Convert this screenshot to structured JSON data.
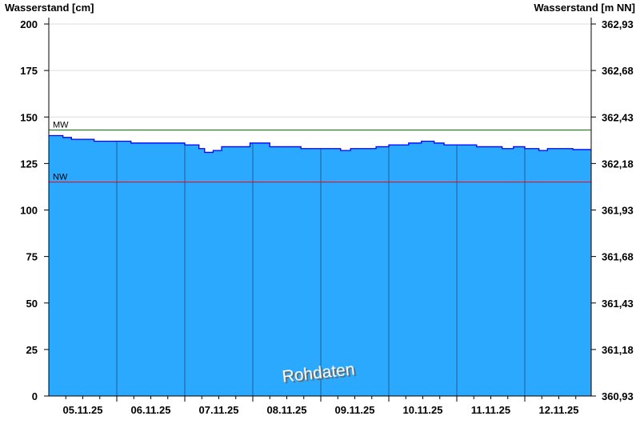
{
  "chart_data": {
    "type": "area",
    "ylabel_left": "Wasserstand [cm]",
    "ylabel_right": "Wasserstand [m NN]",
    "ylim": [
      0,
      200
    ],
    "yticks_left": [
      "0",
      "25",
      "50",
      "75",
      "100",
      "125",
      "150",
      "175",
      "200"
    ],
    "yticks_right": [
      "360,93",
      "361,18",
      "361,43",
      "361,68",
      "361,93",
      "362,18",
      "362,43",
      "362,68",
      "362,93"
    ],
    "xlim": [
      "05.11.25 00:00",
      "12.11.25 23:30"
    ],
    "xtick_labels": [
      "05.11.25",
      "06.11.25",
      "07.11.25",
      "08.11.25",
      "09.11.25",
      "10.11.25",
      "11.11.25",
      "12.11.25"
    ],
    "grid": true,
    "series": [
      {
        "color": "#0000ff",
        "fill": "#2aa9ff",
        "points": [
          [
            "05.11.25 00:00",
            140
          ],
          [
            "05.11.25 05:00",
            139
          ],
          [
            "05.11.25 08:00",
            138
          ],
          [
            "05.11.25 16:00",
            137
          ],
          [
            "06.11.25 05:00",
            136
          ],
          [
            "07.11.25 00:00",
            135
          ],
          [
            "07.11.25 05:00",
            133
          ],
          [
            "07.11.25 07:00",
            131
          ],
          [
            "07.11.25 10:00",
            132
          ],
          [
            "07.11.25 13:00",
            134
          ],
          [
            "07.11.25 23:00",
            136
          ],
          [
            "08.11.25 06:00",
            134
          ],
          [
            "08.11.25 17:00",
            133
          ],
          [
            "09.11.25 07:00",
            132
          ],
          [
            "09.11.25 10:30",
            133
          ],
          [
            "09.11.25 19:30",
            134
          ],
          [
            "10.11.25 00:00",
            135
          ],
          [
            "10.11.25 07:00",
            136
          ],
          [
            "10.11.25 11:30",
            137
          ],
          [
            "10.11.25 16:00",
            136
          ],
          [
            "10.11.25 19:30",
            135
          ],
          [
            "11.11.25 07:00",
            134
          ],
          [
            "11.11.25 16:00",
            133
          ],
          [
            "11.11.25 20:00",
            134
          ],
          [
            "12.11.25 00:00",
            133
          ],
          [
            "12.11.25 05:00",
            132
          ],
          [
            "12.11.25 08:00",
            133
          ],
          [
            "12.11.25 17:00",
            132.5
          ],
          [
            "12.11.25 23:30",
            132.5
          ]
        ]
      }
    ],
    "reference_lines": [
      {
        "label": "MW",
        "value": 143,
        "color": "#008000"
      },
      {
        "label": "NW",
        "value": 115,
        "color": "#ff0000"
      }
    ],
    "watermark": "Rohdaten"
  }
}
